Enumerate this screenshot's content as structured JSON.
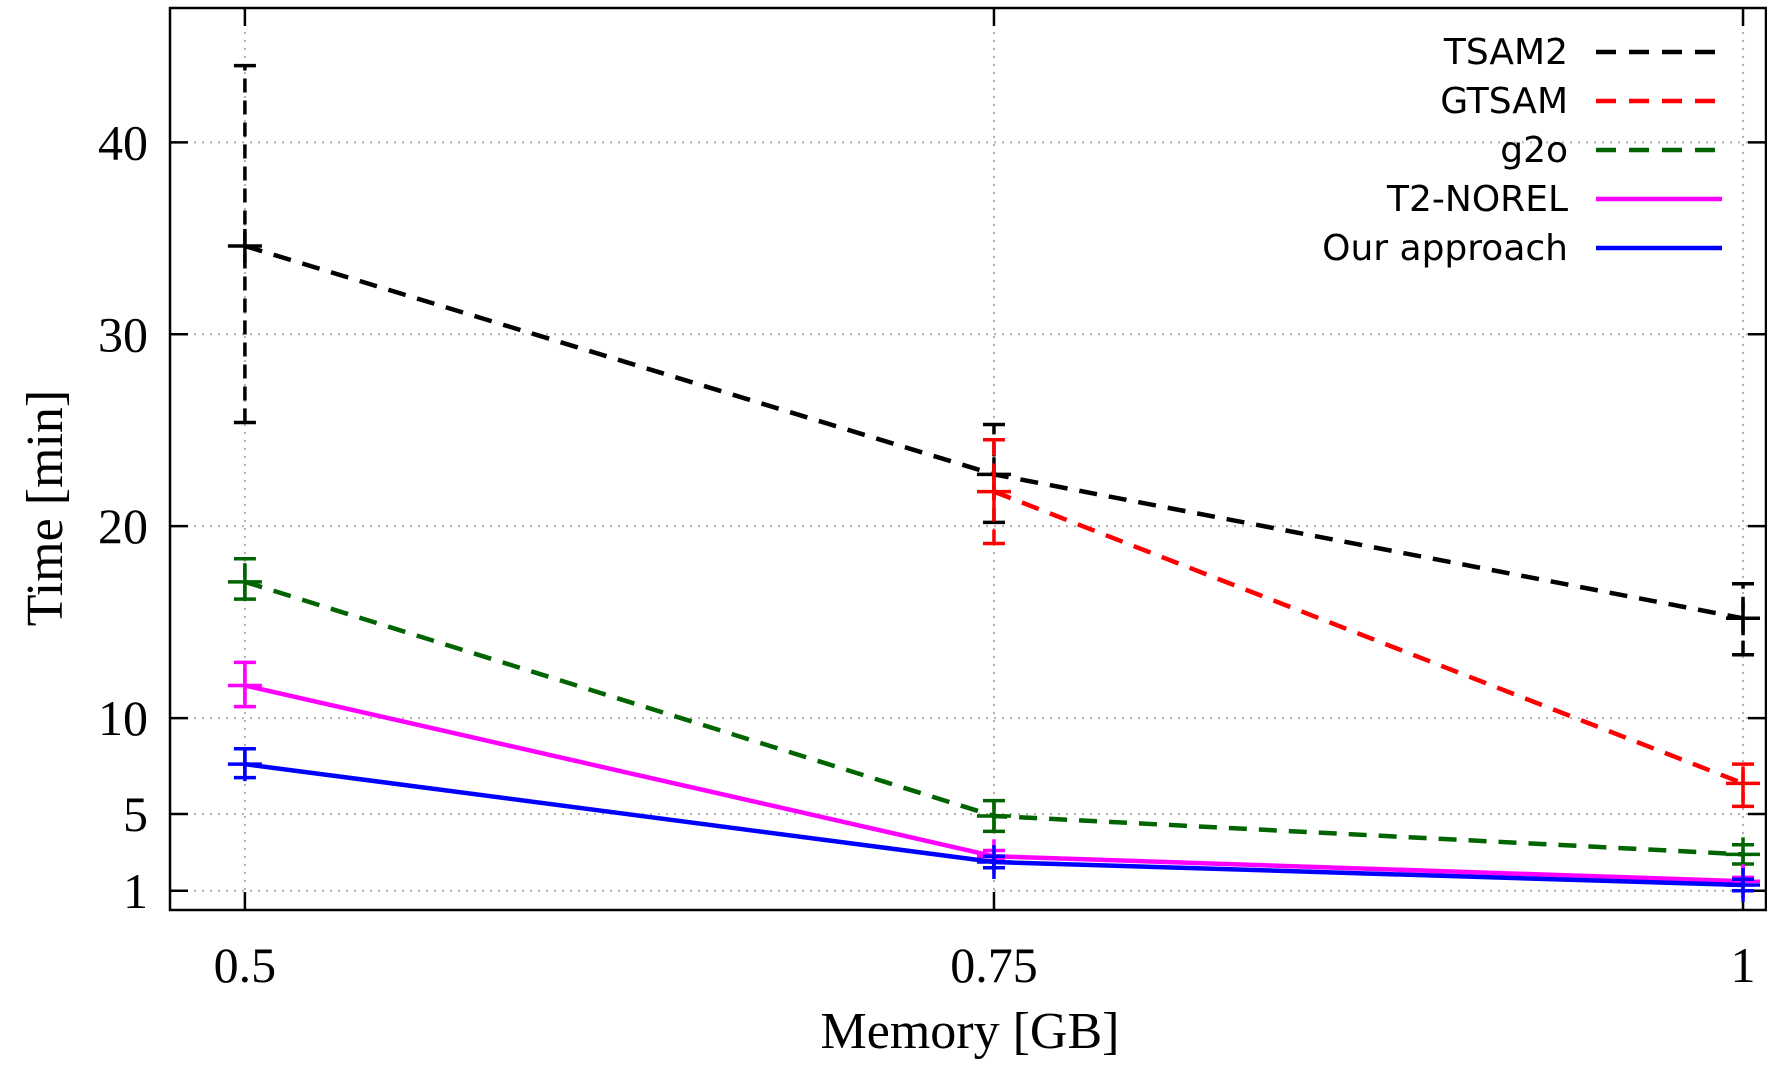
{
  "chart_data": {
    "type": "line",
    "xlabel": "Memory [GB]",
    "ylabel": "Time [min]",
    "x": [
      0.5,
      0.75,
      1
    ],
    "x_tick_labels": [
      "0.5",
      "0.75",
      "1"
    ],
    "y_ticks": [
      1,
      5,
      10,
      20,
      30,
      40
    ],
    "y_tick_labels": [
      "1",
      "5",
      "10",
      "20",
      "30",
      "40"
    ],
    "xlim": [
      0.475,
      1.008
    ],
    "ylim": [
      0,
      47
    ],
    "grid": true,
    "legend_position": "top-right",
    "series": [
      {
        "name": "TSAM2",
        "color": "#000000",
        "dash": "dashed",
        "values": [
          34.6,
          22.7,
          15.2
        ],
        "err_low": [
          25.4,
          20.2,
          13.3
        ],
        "err_high": [
          44.0,
          25.3,
          17.0
        ]
      },
      {
        "name": "GTSAM",
        "color": "#ff0000",
        "dash": "dashed",
        "values": [
          null,
          21.8,
          6.6
        ],
        "err_low": [
          null,
          19.1,
          5.4
        ],
        "err_high": [
          null,
          24.5,
          7.6
        ]
      },
      {
        "name": "g2o",
        "color": "#006400",
        "dash": "dashed",
        "values": [
          17.1,
          4.9,
          2.9
        ],
        "err_low": [
          16.2,
          4.1,
          2.4
        ],
        "err_high": [
          18.3,
          5.7,
          3.4
        ]
      },
      {
        "name": "T2-NOREL",
        "color": "#ff00ff",
        "dash": "solid",
        "values": [
          11.7,
          2.8,
          1.5
        ],
        "err_low": [
          10.6,
          2.6,
          1.3
        ],
        "err_high": [
          12.9,
          3.1,
          1.7
        ]
      },
      {
        "name": "Our approach",
        "color": "#0000ff",
        "dash": "solid",
        "values": [
          7.6,
          2.5,
          1.3
        ],
        "err_low": [
          6.9,
          2.2,
          1.0
        ],
        "err_high": [
          8.4,
          2.8,
          1.6
        ]
      }
    ]
  }
}
